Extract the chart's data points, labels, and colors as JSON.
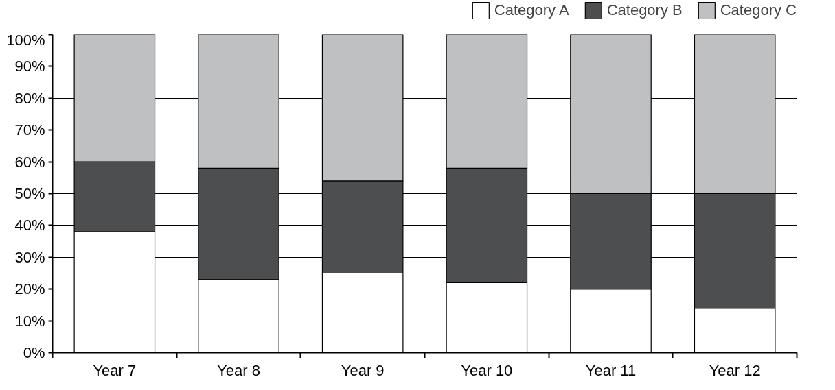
{
  "chart_data": {
    "type": "bar",
    "stacked": true,
    "categories": [
      "Year 7",
      "Year 8",
      "Year 9",
      "Year 10",
      "Year 11",
      "Year 12"
    ],
    "series": [
      {
        "name": "Category A",
        "color": "#ffffff",
        "values": [
          38,
          23,
          25,
          22,
          20,
          14
        ]
      },
      {
        "name": "Category B",
        "color": "#4d4e50",
        "values": [
          22,
          35,
          29,
          36,
          30,
          36
        ]
      },
      {
        "name": "Category C",
        "color": "#bfc0c2",
        "values": [
          40,
          42,
          46,
          42,
          50,
          50
        ]
      }
    ],
    "ylim": [
      0,
      100
    ],
    "yticks": [
      {
        "value": 0,
        "label": "0%"
      },
      {
        "value": 10,
        "label": "10%"
      },
      {
        "value": 20,
        "label": "20%"
      },
      {
        "value": 30,
        "label": "30%"
      },
      {
        "value": 40,
        "label": "40%"
      },
      {
        "value": 50,
        "label": "50%"
      },
      {
        "value": 60,
        "label": "60%"
      },
      {
        "value": 70,
        "label": "70%"
      },
      {
        "value": 80,
        "label": "80%"
      },
      {
        "value": 90,
        "label": "90%"
      },
      {
        "value": 100,
        "label": "100%"
      }
    ],
    "grid": "y",
    "legend": "top right"
  }
}
